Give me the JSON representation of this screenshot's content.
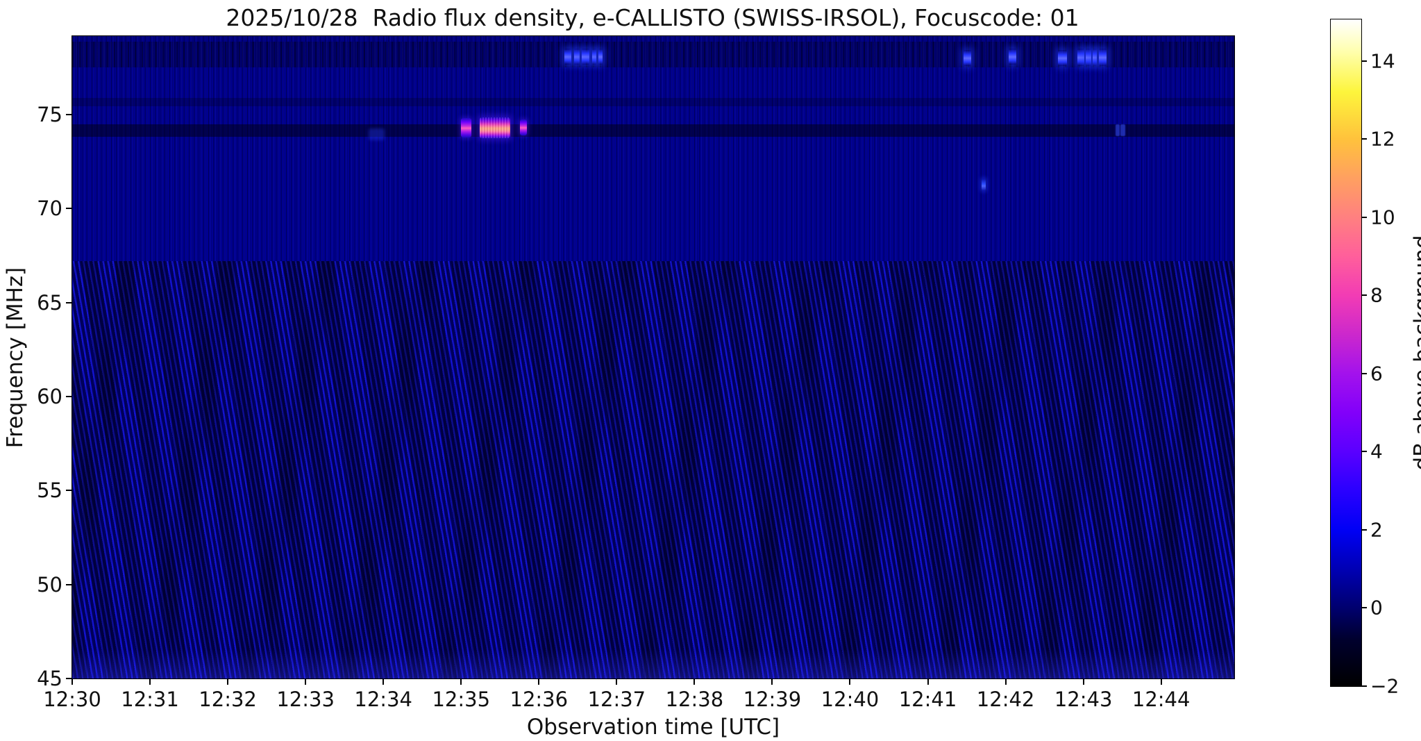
{
  "chart_data": {
    "type": "heatmap",
    "title": "2025/10/28  Radio flux density, e-CALLISTO (SWISS-IRSOL), Focuscode: 01",
    "xlabel": "Observation time [UTC]",
    "ylabel": "Frequency [MHz]",
    "colorbar_label": "dB above background",
    "meta": {
      "date": "2025/10/28",
      "instrument": "e-CALLISTO (SWISS-IRSOL)",
      "focuscode": "01"
    },
    "x_axis": {
      "unit": "minutes after 12:30 UTC",
      "range": [
        0,
        14.94
      ],
      "ticks": [
        {
          "t": 0,
          "label": "12:30"
        },
        {
          "t": 1,
          "label": "12:31"
        },
        {
          "t": 2,
          "label": "12:32"
        },
        {
          "t": 3,
          "label": "12:33"
        },
        {
          "t": 4,
          "label": "12:34"
        },
        {
          "t": 5,
          "label": "12:35"
        },
        {
          "t": 6,
          "label": "12:36"
        },
        {
          "t": 7,
          "label": "12:37"
        },
        {
          "t": 8,
          "label": "12:38"
        },
        {
          "t": 9,
          "label": "12:39"
        },
        {
          "t": 10,
          "label": "12:40"
        },
        {
          "t": 11,
          "label": "12:41"
        },
        {
          "t": 12,
          "label": "12:42"
        },
        {
          "t": 13,
          "label": "12:43"
        },
        {
          "t": 14,
          "label": "12:44"
        }
      ]
    },
    "y_axis": {
      "unit": "MHz",
      "range": [
        45,
        79.18
      ],
      "ticks": [
        {
          "f": 75,
          "label": "75"
        },
        {
          "f": 70,
          "label": "70"
        },
        {
          "f": 65,
          "label": "65"
        },
        {
          "f": 60,
          "label": "60"
        },
        {
          "f": 55,
          "label": "55"
        },
        {
          "f": 50,
          "label": "50"
        },
        {
          "f": 45,
          "label": "45"
        }
      ]
    },
    "colorbar": {
      "unit": "dB",
      "range": [
        -2,
        15.06
      ],
      "ticks": [
        {
          "v": 14,
          "label": "14"
        },
        {
          "v": 12,
          "label": "12"
        },
        {
          "v": 10,
          "label": "10"
        },
        {
          "v": 8,
          "label": "8"
        },
        {
          "v": 6,
          "label": "6"
        },
        {
          "v": 4,
          "label": "4"
        },
        {
          "v": 2,
          "label": "2"
        },
        {
          "v": 0,
          "label": "0"
        },
        {
          "v": -2,
          "label": "−2"
        }
      ],
      "gradient_stops": [
        {
          "v": -2,
          "color": "#000000"
        },
        {
          "v": -0.8,
          "color": "#00002e"
        },
        {
          "v": 0,
          "color": "#00006e"
        },
        {
          "v": 1,
          "color": "#0000b4"
        },
        {
          "v": 2,
          "color": "#0000f5"
        },
        {
          "v": 3,
          "color": "#2a00ff"
        },
        {
          "v": 4,
          "color": "#5a00ff"
        },
        {
          "v": 5,
          "color": "#8200fa"
        },
        {
          "v": 6,
          "color": "#a312ec"
        },
        {
          "v": 7,
          "color": "#cc28cc"
        },
        {
          "v": 8,
          "color": "#f23cb4"
        },
        {
          "v": 9,
          "color": "#ff5f9b"
        },
        {
          "v": 10,
          "color": "#ff8080"
        },
        {
          "v": 11,
          "color": "#ffa060"
        },
        {
          "v": 12,
          "color": "#ffc23c"
        },
        {
          "v": 13.2,
          "color": "#fdf53c"
        },
        {
          "v": 14.3,
          "color": "#ffffb4"
        },
        {
          "v": 15.06,
          "color": "#ffffff"
        }
      ]
    },
    "background": {
      "base_color": "#000086",
      "fringe_color": "#1313cf",
      "description": "dark blue background ~0 dB; diagonal interference-fringe moiré texture below ~67 MHz; faint vertical striations throughout"
    },
    "bands": [
      {
        "name": "rfi-speckle-band-78MHz",
        "kind": "band-rfi",
        "f0": 77.5,
        "f1": 78.9
      },
      {
        "name": "interference-line-74.2MHz",
        "kind": "band-line",
        "f0": 73.82,
        "f1": 74.49
      },
      {
        "name": "interference-line-75.7MHz",
        "kind": "band-line-faint",
        "f0": 75.45,
        "f1": 75.9
      }
    ],
    "features": [
      {
        "name": "burst-precursor-1235:00",
        "kind": "burst-side",
        "t0": 5.0,
        "t1": 5.135,
        "f0": 73.78,
        "f1": 74.82,
        "peak_db": 8
      },
      {
        "name": "burst-main-1235:15-40",
        "kind": "burst-main",
        "t0": 5.24,
        "t1": 5.63,
        "f0": 73.75,
        "f1": 74.86,
        "peak_db": 11
      },
      {
        "name": "burst-tail-1235:46",
        "kind": "burst-side",
        "t0": 5.755,
        "t1": 5.85,
        "f0": 73.9,
        "f1": 74.75,
        "peak_db": 7
      },
      {
        "name": "faint-blue-smudge-1233:53",
        "kind": "faint-smudge",
        "t0": 3.81,
        "t1": 4.02,
        "f0": 73.65,
        "f1": 74.25,
        "peak_db": 1.5
      },
      {
        "name": "rfi-bar",
        "kind": "blue-bar",
        "t0": 6.33,
        "t1": 6.42,
        "f0": 77.65,
        "f1": 78.5,
        "peak_db": 3
      },
      {
        "name": "rfi-bar",
        "kind": "blue-bar",
        "t0": 6.455,
        "t1": 6.52,
        "f0": 77.65,
        "f1": 78.5,
        "peak_db": 3
      },
      {
        "name": "rfi-bar",
        "kind": "blue-bar",
        "t0": 6.555,
        "t1": 6.65,
        "f0": 77.65,
        "f1": 78.5,
        "peak_db": 3
      },
      {
        "name": "rfi-bar",
        "kind": "blue-bar",
        "t0": 6.685,
        "t1": 6.74,
        "f0": 77.65,
        "f1": 78.5,
        "peak_db": 3
      },
      {
        "name": "rfi-bar",
        "kind": "blue-bar",
        "t0": 6.765,
        "t1": 6.82,
        "f0": 77.65,
        "f1": 78.5,
        "peak_db": 3
      },
      {
        "name": "rfi-bar",
        "kind": "blue-bar",
        "t0": 11.46,
        "t1": 11.56,
        "f0": 77.6,
        "f1": 78.45,
        "peak_db": 3
      },
      {
        "name": "rfi-bar",
        "kind": "blue-bar",
        "t0": 12.04,
        "t1": 12.14,
        "f0": 77.65,
        "f1": 78.5,
        "peak_db": 3
      },
      {
        "name": "rfi-bar",
        "kind": "blue-bar",
        "t0": 12.67,
        "t1": 12.79,
        "f0": 77.6,
        "f1": 78.45,
        "peak_db": 3
      },
      {
        "name": "rfi-bar",
        "kind": "blue-bar",
        "t0": 12.92,
        "t1": 13.01,
        "f0": 77.6,
        "f1": 78.5,
        "peak_db": 3.5
      },
      {
        "name": "rfi-bar",
        "kind": "blue-bar",
        "t0": 13.03,
        "t1": 13.1,
        "f0": 77.6,
        "f1": 78.5,
        "peak_db": 3.5
      },
      {
        "name": "rfi-bar",
        "kind": "blue-bar",
        "t0": 13.115,
        "t1": 13.175,
        "f0": 77.6,
        "f1": 78.5,
        "peak_db": 3.5
      },
      {
        "name": "rfi-bar",
        "kind": "blue-bar",
        "t0": 13.2,
        "t1": 13.3,
        "f0": 77.6,
        "f1": 78.5,
        "peak_db": 3.5
      },
      {
        "name": "blue-dot-1241:42-71MHz",
        "kind": "blue-dot",
        "t0": 11.695,
        "t1": 11.745,
        "f0": 70.95,
        "f1": 71.6,
        "peak_db": 2.5
      },
      {
        "name": "faint-dash-1243:25",
        "kind": "faint-dash",
        "t0": 13.415,
        "t1": 13.47,
        "f0": 73.85,
        "f1": 74.5,
        "peak_db": 2
      },
      {
        "name": "faint-dash-1243:29",
        "kind": "faint-dash",
        "t0": 13.48,
        "t1": 13.535,
        "f0": 73.85,
        "f1": 74.5,
        "peak_db": 2
      }
    ]
  }
}
